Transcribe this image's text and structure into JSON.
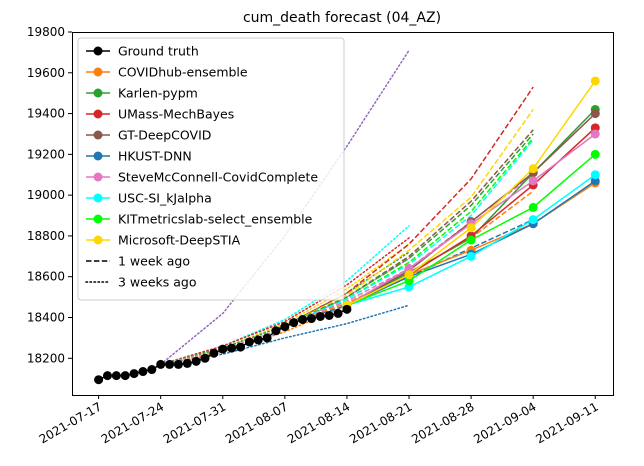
{
  "chart_data": {
    "type": "line",
    "title": "cum_death forecast (04_AZ)",
    "xlabel": "",
    "ylabel": "",
    "x_type": "date",
    "xlim": [
      "2021-07-14",
      "2021-09-13"
    ],
    "ylim": [
      18020,
      19800
    ],
    "x_ticks": [
      "2021-07-17",
      "2021-07-24",
      "2021-07-31",
      "2021-08-07",
      "2021-08-14",
      "2021-08-21",
      "2021-08-28",
      "2021-09-04",
      "2021-09-11"
    ],
    "y_ticks": [
      18200,
      18400,
      18600,
      18800,
      19000,
      19200,
      19400,
      19600,
      19800
    ],
    "grid": false,
    "legend_position": "top-left",
    "legend": [
      {
        "label": "Ground truth",
        "color": "#000000",
        "style": "solid",
        "marker": true
      },
      {
        "label": "COVIDhub-ensemble",
        "color": "#ff7f0e",
        "style": "solid",
        "marker": true
      },
      {
        "label": "Karlen-pypm",
        "color": "#2ca02c",
        "style": "solid",
        "marker": true
      },
      {
        "label": "UMass-MechBayes",
        "color": "#d62728",
        "style": "solid",
        "marker": true
      },
      {
        "label": "GT-DeepCOVID",
        "color": "#8c564b",
        "style": "solid",
        "marker": true
      },
      {
        "label": "HKUST-DNN",
        "color": "#1f77b4",
        "style": "solid",
        "marker": true
      },
      {
        "label": "SteveMcConnell-CovidComplete",
        "color": "#e377c2",
        "style": "solid",
        "marker": true
      },
      {
        "label": "USC-SI_kJalpha",
        "color": "#00ffff",
        "style": "solid",
        "marker": true
      },
      {
        "label": "KITmetricslab-select_ensemble",
        "color": "#00ff00",
        "style": "solid",
        "marker": true
      },
      {
        "label": "Microsoft-DeepSTIA",
        "color": "#ffd700",
        "style": "solid",
        "marker": true
      },
      {
        "label": "1 week ago",
        "color": "#000000",
        "style": "dashed",
        "marker": false
      },
      {
        "label": "3 weeks ago",
        "color": "#000000",
        "style": "dotted",
        "marker": false
      }
    ],
    "ground_truth": {
      "name": "Ground truth",
      "color": "#000000",
      "x": [
        "2021-07-17",
        "2021-07-18",
        "2021-07-19",
        "2021-07-20",
        "2021-07-21",
        "2021-07-22",
        "2021-07-23",
        "2021-07-24",
        "2021-07-25",
        "2021-07-26",
        "2021-07-27",
        "2021-07-28",
        "2021-07-29",
        "2021-07-30",
        "2021-07-31",
        "2021-08-01",
        "2021-08-02",
        "2021-08-03",
        "2021-08-04",
        "2021-08-05",
        "2021-08-06",
        "2021-08-07",
        "2021-08-08",
        "2021-08-09",
        "2021-08-10",
        "2021-08-11",
        "2021-08-12",
        "2021-08-13",
        "2021-08-14"
      ],
      "y": [
        18095,
        18115,
        18115,
        18115,
        18125,
        18135,
        18145,
        18170,
        18170,
        18170,
        18175,
        18185,
        18200,
        18225,
        18245,
        18250,
        18255,
        18280,
        18290,
        18300,
        18335,
        18355,
        18375,
        18390,
        18395,
        18405,
        18410,
        18420,
        18440
      ]
    },
    "forecasts": [
      {
        "name": "COVIDhub-ensemble",
        "color": "#ff7f0e",
        "x": [
          "2021-08-14",
          "2021-08-21",
          "2021-08-28",
          "2021-09-04",
          "2021-09-11"
        ],
        "y": [
          18460,
          18610,
          18730,
          18860,
          19060
        ]
      },
      {
        "name": "Karlen-pypm",
        "color": "#2ca02c",
        "x": [
          "2021-08-14",
          "2021-08-21",
          "2021-08-28",
          "2021-09-04",
          "2021-09-11"
        ],
        "y": [
          18460,
          18620,
          18790,
          19110,
          19420
        ]
      },
      {
        "name": "UMass-MechBayes",
        "color": "#d62728",
        "x": [
          "2021-08-14",
          "2021-08-21",
          "2021-08-28",
          "2021-09-04",
          "2021-09-11"
        ],
        "y": [
          18460,
          18610,
          18800,
          19050,
          19330
        ]
      },
      {
        "name": "GT-DeepCOVID",
        "color": "#8c564b",
        "x": [
          "2021-08-14",
          "2021-08-21",
          "2021-08-28",
          "2021-09-04",
          "2021-09-11"
        ],
        "y": [
          18460,
          18630,
          18870,
          19110,
          19400
        ]
      },
      {
        "name": "HKUST-DNN",
        "color": "#1f77b4",
        "x": [
          "2021-08-14",
          "2021-08-21",
          "2021-08-28",
          "2021-09-04",
          "2021-09-11"
        ],
        "y": [
          18460,
          18600,
          18710,
          18860,
          19070
        ]
      },
      {
        "name": "SteveMcConnell-CovidComplete",
        "color": "#e377c2",
        "x": [
          "2021-08-14",
          "2021-08-21",
          "2021-08-28",
          "2021-09-04",
          "2021-09-11"
        ],
        "y": [
          18460,
          18640,
          18860,
          19070,
          19300
        ]
      },
      {
        "name": "USC-SI_kJalpha",
        "color": "#00ffff",
        "x": [
          "2021-08-14",
          "2021-08-21",
          "2021-08-28",
          "2021-09-04",
          "2021-09-11"
        ],
        "y": [
          18460,
          18550,
          18700,
          18880,
          19100
        ]
      },
      {
        "name": "KITmetricslab-select_ensemble",
        "color": "#00ff00",
        "x": [
          "2021-08-14",
          "2021-08-21",
          "2021-08-28",
          "2021-09-04",
          "2021-09-11"
        ],
        "y": [
          18460,
          18580,
          18780,
          18940,
          19200
        ]
      },
      {
        "name": "Microsoft-DeepSTIA",
        "color": "#ffd700",
        "x": [
          "2021-08-14",
          "2021-08-21",
          "2021-08-28",
          "2021-09-04",
          "2021-09-11"
        ],
        "y": [
          18460,
          18610,
          18840,
          19130,
          19560
        ]
      }
    ],
    "forecasts_1_week_ago": [
      {
        "color": "#d62728",
        "x": [
          "2021-08-07",
          "2021-08-14",
          "2021-08-21",
          "2021-08-28",
          "2021-09-04"
        ],
        "y": [
          18360,
          18520,
          18760,
          19080,
          19530
        ]
      },
      {
        "color": "#ffd700",
        "x": [
          "2021-08-07",
          "2021-08-14",
          "2021-08-21",
          "2021-08-28",
          "2021-09-04"
        ],
        "y": [
          18360,
          18510,
          18730,
          18990,
          19420
        ]
      },
      {
        "color": "#8c564b",
        "x": [
          "2021-08-07",
          "2021-08-14",
          "2021-08-21",
          "2021-08-28",
          "2021-09-04"
        ],
        "y": [
          18360,
          18500,
          18700,
          18970,
          19320
        ]
      },
      {
        "color": "#2ca02c",
        "x": [
          "2021-08-07",
          "2021-08-14",
          "2021-08-21",
          "2021-08-28",
          "2021-09-04"
        ],
        "y": [
          18360,
          18500,
          18690,
          18950,
          19300
        ]
      },
      {
        "color": "#00ff00",
        "x": [
          "2021-08-07",
          "2021-08-14",
          "2021-08-21",
          "2021-08-28",
          "2021-09-04"
        ],
        "y": [
          18360,
          18490,
          18670,
          18920,
          19280
        ]
      },
      {
        "color": "#00ffff",
        "x": [
          "2021-08-07",
          "2021-08-14",
          "2021-08-21",
          "2021-08-28",
          "2021-09-04"
        ],
        "y": [
          18360,
          18490,
          18660,
          18900,
          19270
        ]
      },
      {
        "color": "#e377c2",
        "x": [
          "2021-08-07",
          "2021-08-14",
          "2021-08-21",
          "2021-08-28",
          "2021-09-04"
        ],
        "y": [
          18360,
          18480,
          18640,
          18870,
          19100
        ]
      },
      {
        "color": "#ff7f0e",
        "x": [
          "2021-08-07",
          "2021-08-14",
          "2021-08-21",
          "2021-08-28",
          "2021-09-04"
        ],
        "y": [
          18360,
          18470,
          18620,
          18790,
          19020
        ]
      },
      {
        "color": "#1f77b4",
        "x": [
          "2021-08-07",
          "2021-08-14",
          "2021-08-21",
          "2021-08-28",
          "2021-09-04"
        ],
        "y": [
          18360,
          18460,
          18600,
          18740,
          18880
        ]
      }
    ],
    "forecasts_3_weeks_ago": [
      {
        "color": "#9467bd",
        "x": [
          "2021-07-24",
          "2021-07-31",
          "2021-08-07",
          "2021-08-14",
          "2021-08-21"
        ],
        "y": [
          18170,
          18420,
          18800,
          19240,
          19710
        ]
      },
      {
        "color": "#00ffff",
        "x": [
          "2021-07-24",
          "2021-07-31",
          "2021-08-07",
          "2021-08-14",
          "2021-08-21"
        ],
        "y": [
          18170,
          18260,
          18390,
          18580,
          18850
        ]
      },
      {
        "color": "#d62728",
        "x": [
          "2021-07-24",
          "2021-07-31",
          "2021-08-07",
          "2021-08-14",
          "2021-08-21"
        ],
        "y": [
          18170,
          18260,
          18380,
          18560,
          18790
        ]
      },
      {
        "color": "#ffd700",
        "x": [
          "2021-07-24",
          "2021-07-31",
          "2021-08-07",
          "2021-08-14",
          "2021-08-21"
        ],
        "y": [
          18170,
          18250,
          18370,
          18540,
          18760
        ]
      },
      {
        "color": "#2ca02c",
        "x": [
          "2021-07-24",
          "2021-07-31",
          "2021-08-07",
          "2021-08-14",
          "2021-08-21"
        ],
        "y": [
          18170,
          18250,
          18360,
          18520,
          18720
        ]
      },
      {
        "color": "#e377c2",
        "x": [
          "2021-07-24",
          "2021-07-31",
          "2021-08-07",
          "2021-08-14",
          "2021-08-21"
        ],
        "y": [
          18170,
          18240,
          18350,
          18500,
          18690
        ]
      },
      {
        "color": "#ff7f0e",
        "x": [
          "2021-07-24",
          "2021-07-31",
          "2021-08-07",
          "2021-08-14",
          "2021-08-21"
        ],
        "y": [
          18170,
          18230,
          18330,
          18460,
          18620
        ]
      },
      {
        "color": "#1f77b4",
        "x": [
          "2021-07-24",
          "2021-07-31",
          "2021-08-07",
          "2021-08-14",
          "2021-08-21"
        ],
        "y": [
          18170,
          18220,
          18300,
          18370,
          18460
        ]
      }
    ]
  }
}
